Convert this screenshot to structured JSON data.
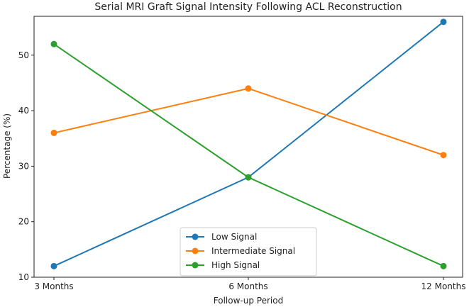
{
  "chart_data": {
    "type": "line",
    "title": "Serial MRI Graft Signal Intensity Following ACL Reconstruction",
    "xlabel": "Follow-up Period",
    "ylabel": "Percentage (%)",
    "categories": [
      "3 Months",
      "6 Months",
      "12 Months"
    ],
    "yticks": [
      10,
      20,
      30,
      40,
      50
    ],
    "ylim": [
      10,
      57
    ],
    "grid": false,
    "legend_position": "bottom-center",
    "series": [
      {
        "name": "Low Signal",
        "color": "#1f77b4",
        "values": [
          12,
          28,
          56
        ]
      },
      {
        "name": "Intermediate Signal",
        "color": "#ff7f0e",
        "values": [
          36,
          44,
          32
        ]
      },
      {
        "name": "High Signal",
        "color": "#2ca02c",
        "values": [
          52,
          28,
          12
        ]
      }
    ]
  }
}
